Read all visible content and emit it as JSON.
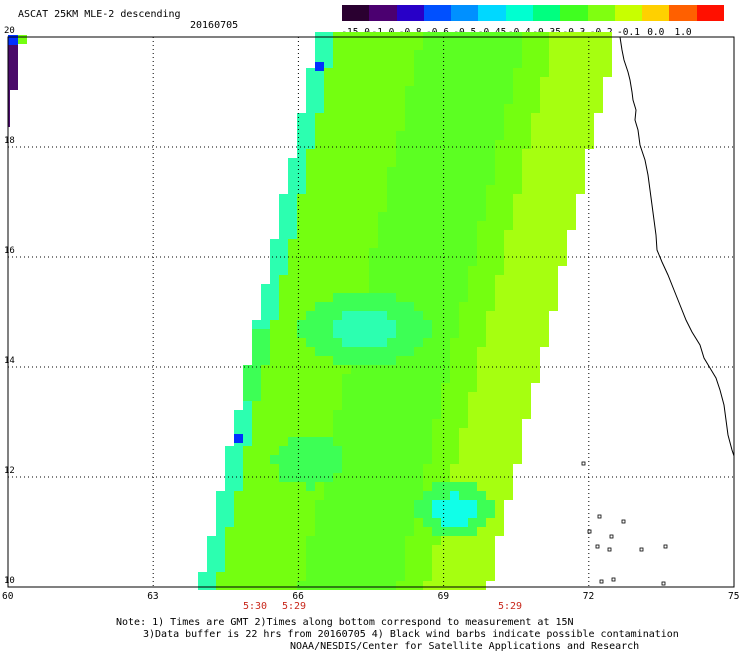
{
  "header": {
    "title": "ASCAT 25KM MLE-2 descending",
    "date": "20160705"
  },
  "colorbar": {
    "labels": [
      "-15.0",
      "-1.0",
      "-0.8",
      "-0.6",
      "-0.5",
      "-0.45",
      "-0.4",
      "-0.35",
      "-0.3",
      "-0.2",
      "-0.1",
      "0.0",
      "1.0"
    ],
    "colors": [
      "#2a0030",
      "#4b0070",
      "#2800c8",
      "#0050ff",
      "#0090ff",
      "#00d8ff",
      "#00ffd0",
      "#00ff80",
      "#40ff20",
      "#80ff10",
      "#c8ff00",
      "#ffd000",
      "#ff6000",
      "#ff1000"
    ]
  },
  "map": {
    "lat_labels": [
      "20",
      "18",
      "16",
      "14",
      "12",
      "10"
    ],
    "lon_labels": [
      "60",
      "63",
      "66",
      "69",
      "72",
      "75"
    ],
    "lat_values": [
      20,
      18,
      16,
      14,
      12,
      10
    ],
    "lon_values": [
      60,
      63,
      66,
      69,
      72,
      75
    ],
    "swath_colors": {
      "base": "#74ff10",
      "mid": "#5cff22",
      "cool": "#3dff55",
      "aqua": "#2cffb0",
      "cyan": "#10ffe8",
      "yellow": "#a6ff10",
      "blue": "#0030ff",
      "navy": "#4a0a6a"
    }
  },
  "time_labels": {
    "t1": "5:30",
    "t2": "5:29",
    "t3": "5:29"
  },
  "notes": {
    "line1": "Note: 1) Times are GMT 2)Times along bottom correspond to measurement at 15N",
    "line2": "3)Data buffer is 22 hrs from 20160705 4) Black wind barbs indicate possible contamination",
    "line3": "NOAA/NESDIS/Center for Satellite Applications and Research"
  }
}
